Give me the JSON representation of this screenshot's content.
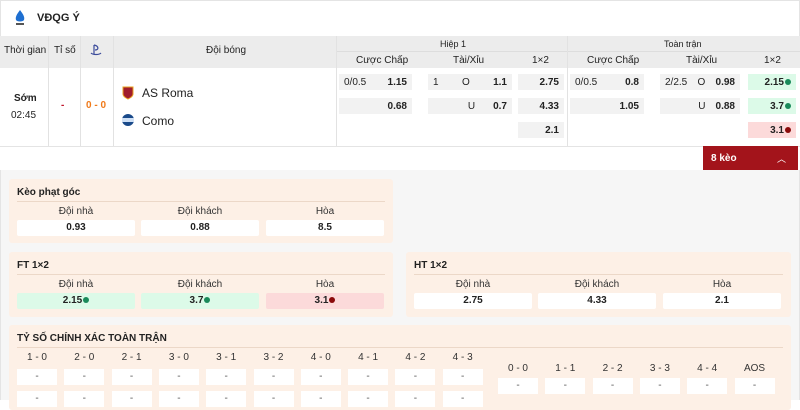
{
  "league": {
    "name": "VĐQG Ý",
    "icon": "serie-a-logo"
  },
  "table_header": {
    "time": "Thời gian",
    "score": "Tỉ số",
    "teams": "Đội bóng",
    "first_half": "Hiệp 1",
    "full_time": "Toàn trận",
    "handicap": "Cược Chấp",
    "over_under": "Tài/Xỉu",
    "one_x_two": "1×2"
  },
  "match": {
    "status": "Sớm",
    "time": "02:45",
    "red": "-",
    "score": "0 - 0",
    "home": "AS Roma",
    "away": "Como",
    "h1": {
      "hc_line": "0/0.5",
      "hc_home": "1.15",
      "hc_away": "0.68",
      "ou_line": "1",
      "ou_o": "O",
      "ou_over": "1.1",
      "ou_u": "U",
      "ou_under": "0.7",
      "x_home": "2.75",
      "x_away": "4.33",
      "x_draw": "2.1"
    },
    "ft": {
      "hc_line": "0/0.5",
      "hc_home": "0.8",
      "hc_away": "1.05",
      "ou_line": "2/2.5",
      "ou_o": "O",
      "ou_over": "0.98",
      "ou_u": "U",
      "ou_under": "0.88",
      "x_home": "2.15",
      "x_away": "3.7",
      "x_draw": "3.1"
    }
  },
  "more_button": "8 kèo",
  "colors": {
    "up": "#1a8a5a",
    "down": "#8b0a0a",
    "accent": "#a3141b"
  },
  "corner": {
    "title": "Kèo phạt góc",
    "labels": [
      "Đội nhà",
      "Đội khách",
      "Hòa"
    ],
    "values": [
      "0.93",
      "0.88",
      "8.5"
    ]
  },
  "ft12": {
    "title": "FT 1×2",
    "labels": [
      "Đội nhà",
      "Đội khách",
      "Hòa"
    ],
    "values": [
      "2.15",
      "3.7",
      "3.1"
    ],
    "trends": [
      "up",
      "up",
      "down"
    ]
  },
  "ht12": {
    "title": "HT 1×2",
    "labels": [
      "Đội nhà",
      "Đội khách",
      "Hòa"
    ],
    "values": [
      "2.75",
      "4.33",
      "2.1"
    ]
  },
  "correct_score": {
    "title": "TỶ SỐ CHÍNH XÁC TOÀN TRẬN",
    "left": [
      "1 - 0",
      "2 - 0",
      "2 - 1",
      "3 - 0",
      "3 - 1",
      "3 - 2",
      "4 - 0",
      "4 - 1",
      "4 - 2",
      "4 - 3"
    ],
    "left_values": [
      "-",
      "-",
      "-",
      "-",
      "-",
      "-",
      "-",
      "-",
      "-",
      "-"
    ],
    "left_values2": [
      "-",
      "-",
      "-",
      "-",
      "-",
      "-",
      "-",
      "-",
      "-",
      "-"
    ],
    "right": [
      "0 - 0",
      "1 - 1",
      "2 - 2",
      "3 - 3",
      "4 - 4",
      "AOS"
    ],
    "right_values": [
      "-",
      "-",
      "-",
      "-",
      "-",
      "-"
    ]
  }
}
